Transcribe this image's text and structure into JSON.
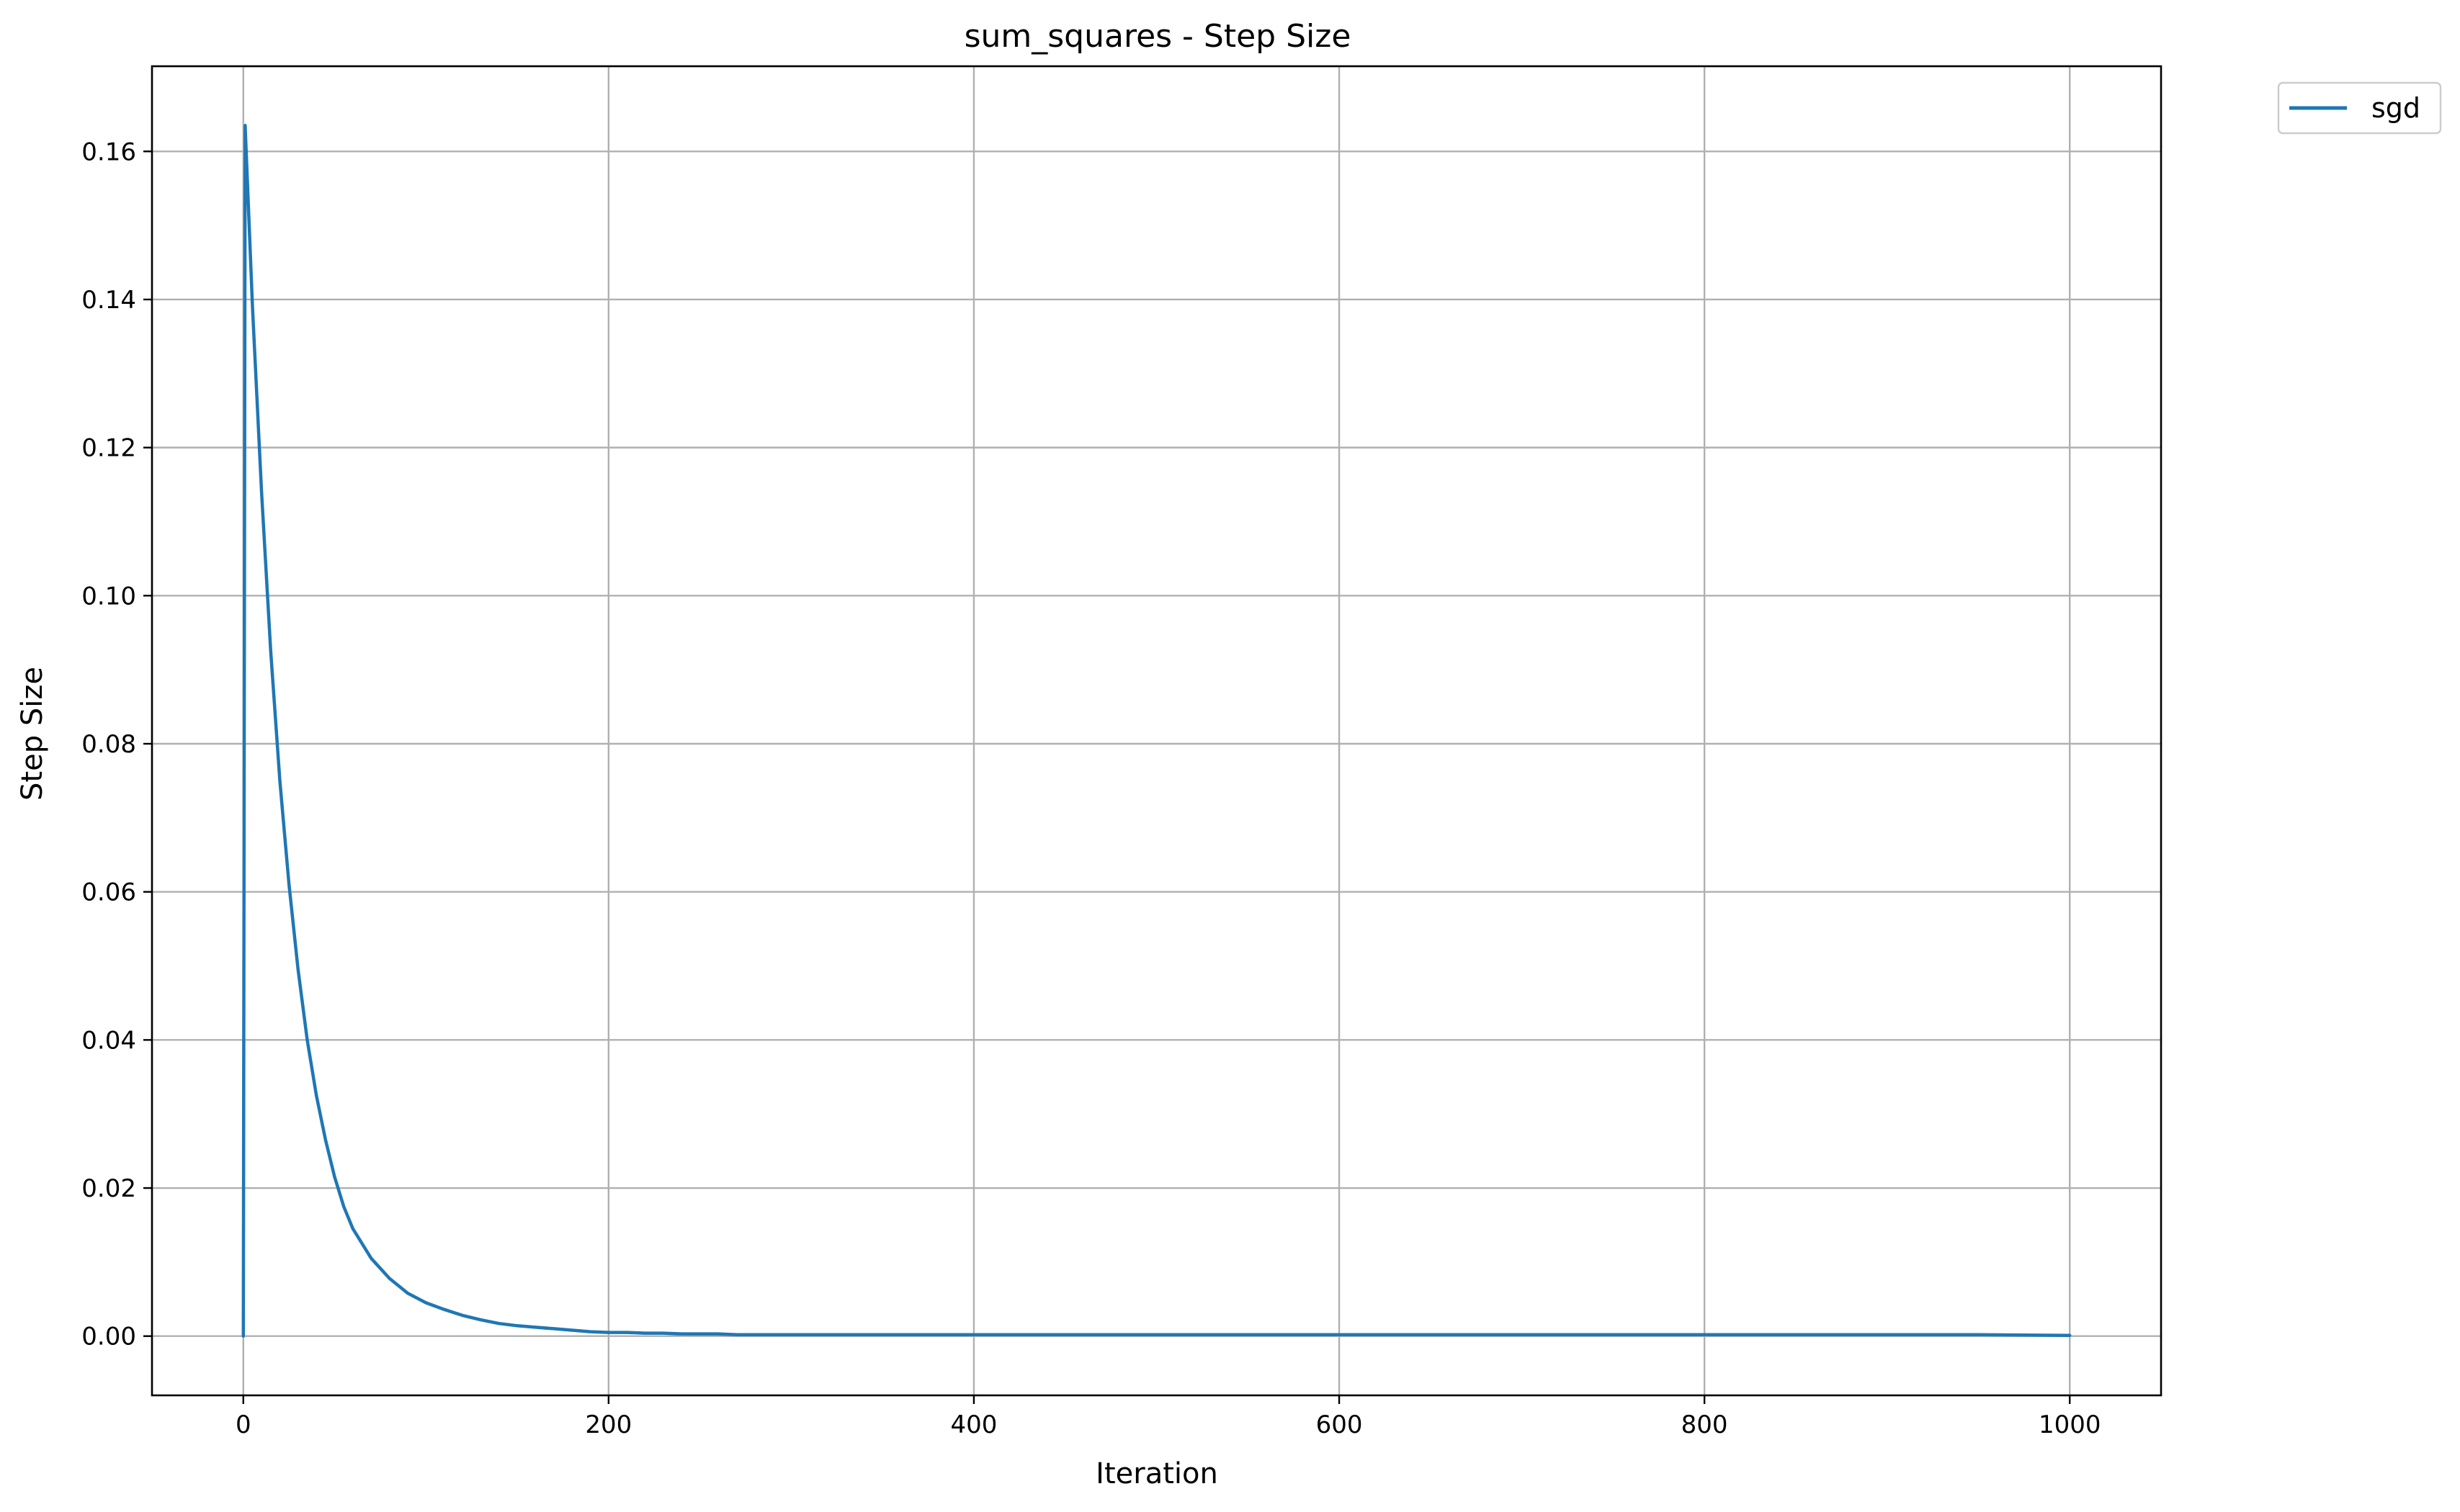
{
  "chart_data": {
    "type": "line",
    "title": "sum_squares - Step Size",
    "xlabel": "Iteration",
    "ylabel": "Step Size",
    "xlim": [
      -50,
      1050
    ],
    "ylim": [
      -0.008,
      0.1715
    ],
    "xticks": [
      0,
      200,
      400,
      600,
      800,
      1000
    ],
    "xtick_labels": [
      "0",
      "200",
      "400",
      "600",
      "800",
      "1000"
    ],
    "yticks": [
      0.0,
      0.02,
      0.04,
      0.06,
      0.08,
      0.1,
      0.12,
      0.14,
      0.16
    ],
    "ytick_labels": [
      "0.00",
      "0.02",
      "0.04",
      "0.06",
      "0.08",
      "0.10",
      "0.12",
      "0.14",
      "0.16"
    ],
    "grid": true,
    "legend_position": "outside-top-right",
    "series": [
      {
        "name": "sgd",
        "color": "#1f77b4",
        "x": [
          0,
          1,
          5,
          10,
          15,
          20,
          25,
          30,
          35,
          40,
          45,
          50,
          55,
          60,
          70,
          80,
          90,
          100,
          110,
          120,
          130,
          140,
          150,
          160,
          170,
          180,
          190,
          200,
          210,
          220,
          230,
          240,
          250,
          260,
          270,
          280,
          290,
          300,
          350,
          400,
          450,
          500,
          550,
          600,
          650,
          700,
          750,
          800,
          850,
          900,
          950,
          1000
        ],
        "y": [
          0.0,
          0.1635,
          0.139,
          0.114,
          0.0925,
          0.075,
          0.061,
          0.0495,
          0.04,
          0.0325,
          0.0265,
          0.0215,
          0.0175,
          0.0145,
          0.0105,
          0.0078,
          0.0058,
          0.0045,
          0.0036,
          0.0028,
          0.0022,
          0.0017,
          0.0014,
          0.0012,
          0.001,
          0.0008,
          0.0006,
          0.0005,
          0.0005,
          0.0004,
          0.0004,
          0.0003,
          0.0003,
          0.0003,
          0.0002,
          0.0002,
          0.0002,
          0.0002,
          0.0002,
          0.0002,
          0.0002,
          0.0002,
          0.0002,
          0.0002,
          0.0002,
          0.0002,
          0.0002,
          0.0002,
          0.0002,
          0.0002,
          0.0002,
          0.0001
        ]
      }
    ]
  }
}
